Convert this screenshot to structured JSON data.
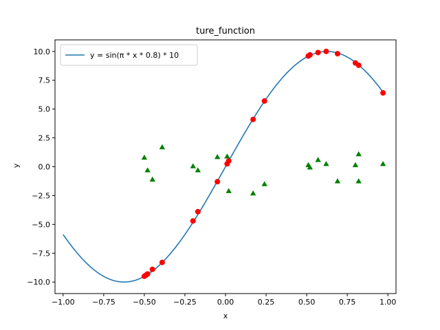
{
  "chart_data": {
    "type": "scatter",
    "title": "ture_function",
    "xlabel": "x",
    "ylabel": "y",
    "xlim": [
      -1.05,
      1.05
    ],
    "ylim": [
      -11.0,
      11.0
    ],
    "xticks": [
      -1.0,
      -0.75,
      -0.5,
      -0.25,
      0.0,
      0.25,
      0.5,
      0.75,
      1.0
    ],
    "xtick_labels": [
      "−1.00",
      "−0.75",
      "−0.50",
      "−0.25",
      "0.00",
      "0.25",
      "0.50",
      "0.75",
      "1.00"
    ],
    "yticks": [
      -10.0,
      -7.5,
      -5.0,
      -2.5,
      0.0,
      2.5,
      5.0,
      7.5,
      10.0
    ],
    "ytick_labels": [
      "−10.0",
      "−7.5",
      "−5.0",
      "−2.5",
      "0.0",
      "2.5",
      "5.0",
      "7.5",
      "10.0"
    ],
    "grid": false,
    "legend_position": "top-left",
    "series": [
      {
        "name": "y = sin(π * x * 0.8) * 10",
        "type": "line",
        "color": "#1f77b4",
        "x_range": [
          -1.0,
          0.98
        ],
        "formula": "sin(pi*x*0.8)*10"
      },
      {
        "type": "scatter",
        "marker": "circle",
        "color": "#ff0000",
        "x": [
          -0.5,
          -0.49,
          -0.48,
          -0.45,
          -0.39,
          -0.2,
          -0.17,
          -0.05,
          0.01,
          0.02,
          0.17,
          0.24,
          0.51,
          0.52,
          0.57,
          0.62,
          0.69,
          0.8,
          0.82,
          0.97
        ],
        "y": [
          -9.5,
          -9.4,
          -9.3,
          -8.9,
          -8.3,
          -4.7,
          -3.9,
          -1.3,
          0.25,
          0.5,
          4.1,
          5.7,
          9.6,
          9.7,
          9.9,
          10.0,
          9.8,
          9.0,
          8.8,
          6.4
        ]
      },
      {
        "type": "scatter",
        "marker": "triangle",
        "color": "#008000",
        "x": [
          -0.5,
          -0.48,
          -0.45,
          -0.39,
          -0.2,
          -0.17,
          -0.05,
          0.01,
          0.02,
          0.17,
          0.24,
          0.51,
          0.52,
          0.57,
          0.62,
          0.69,
          0.8,
          0.82,
          0.82,
          0.97
        ],
        "y": [
          0.8,
          -0.3,
          -1.1,
          1.7,
          0.05,
          -0.3,
          0.85,
          0.9,
          -2.1,
          -2.3,
          -1.5,
          0.15,
          -0.05,
          0.6,
          0.25,
          -1.25,
          0.15,
          1.1,
          -1.25,
          0.25
        ]
      }
    ]
  }
}
